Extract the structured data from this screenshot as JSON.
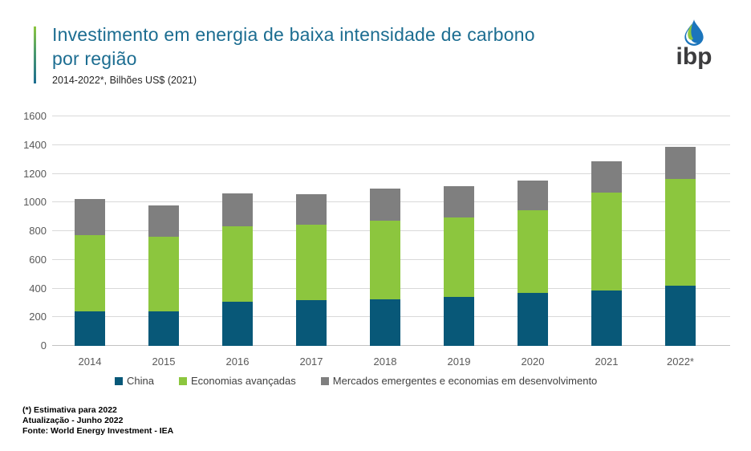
{
  "header": {
    "title_line1": "Investimento em energia de baixa intensidade de carbono",
    "title_line2": "por região",
    "subtitle": "2014-2022*, Bilhões US$ (2021)",
    "accent_color_top": "#8CC63E",
    "accent_color_bottom": "#1C6D91",
    "title_color": "#1C6D91"
  },
  "logo": {
    "text": "ibp"
  },
  "chart_data": {
    "type": "bar",
    "stacked": true,
    "title": "Investimento em energia de baixa intensidade de carbono por região",
    "subtitle": "2014-2022*, Bilhões US$ (2021)",
    "xlabel": "",
    "ylabel": "Bilhões US$ (2021)",
    "categories": [
      "2014",
      "2015",
      "2016",
      "2017",
      "2018",
      "2019",
      "2020",
      "2021",
      "2022*"
    ],
    "series": [
      {
        "name": "China",
        "color": "#085878",
        "values": [
          240,
          240,
          310,
          320,
          325,
          340,
          370,
          385,
          420
        ]
      },
      {
        "name": "Economias avançadas",
        "color": "#8CC63E",
        "values": [
          530,
          520,
          525,
          525,
          550,
          555,
          575,
          685,
          745
        ]
      },
      {
        "name": "Mercados emergentes e economias em desenvolvimento",
        "color": "#7F7F7F",
        "values": [
          255,
          220,
          230,
          215,
          220,
          220,
          205,
          215,
          225
        ]
      }
    ],
    "totals": [
      1025,
      980,
      1065,
      1060,
      1095,
      1115,
      1150,
      1285,
      1390
    ],
    "ylim": [
      0,
      1600
    ],
    "ytick_step": 200,
    "yticks": [
      0,
      200,
      400,
      600,
      800,
      1000,
      1200,
      1400,
      1600
    ],
    "grid": true,
    "legend_position": "bottom"
  },
  "footer": {
    "lines": [
      "(*) Estimativa  para 2022",
      "Atualização - Junho 2022",
      "Fonte: World Energy Investment - IEA"
    ]
  }
}
